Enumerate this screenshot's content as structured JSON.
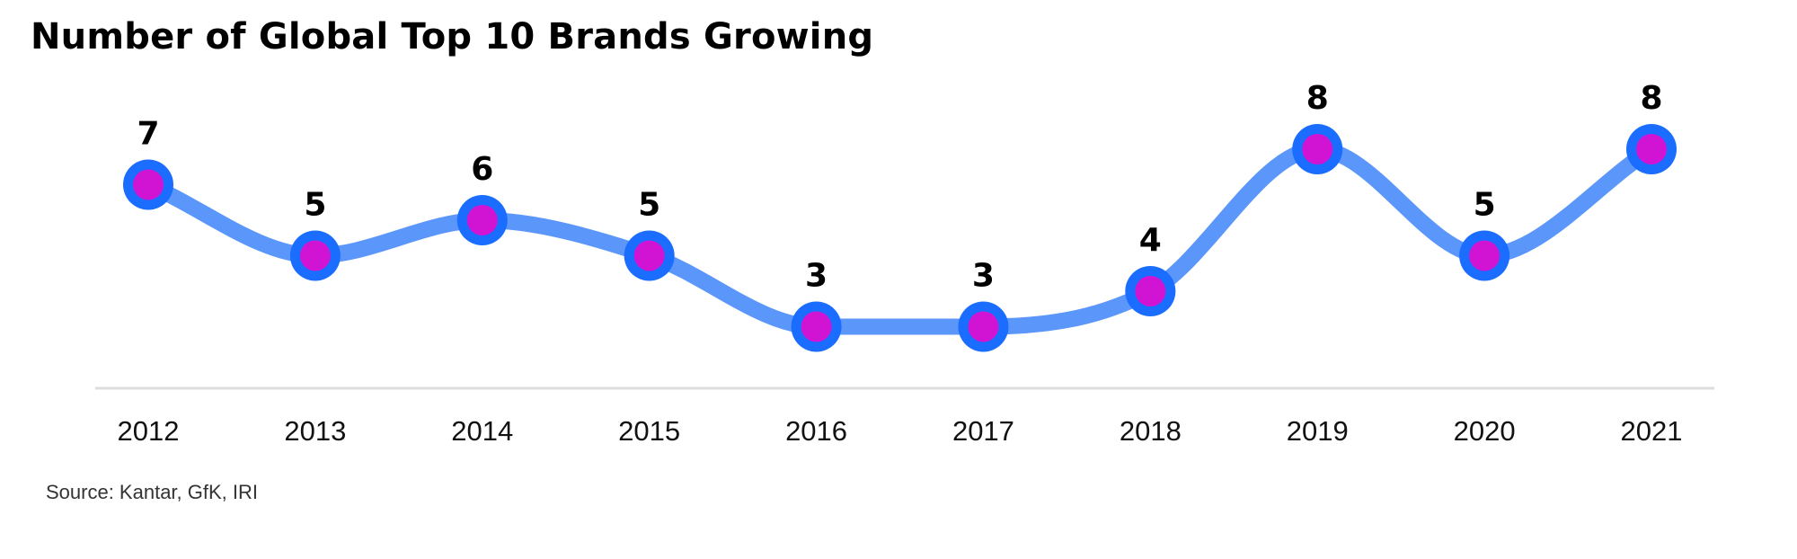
{
  "title": "Number of Global Top 10 Brands Growing",
  "source": "Source: Kantar, GfK, IRI",
  "colors": {
    "line": "#5b96fb",
    "marker_ring": "#1a6dff",
    "marker_fill": "#d113d4",
    "axis": "#dddddd"
  },
  "chart_data": {
    "type": "line",
    "title": "Number of Global Top 10 Brands Growing",
    "xlabel": "",
    "ylabel": "",
    "categories": [
      "2012",
      "2013",
      "2014",
      "2015",
      "2016",
      "2017",
      "2018",
      "2019",
      "2020",
      "2021"
    ],
    "series": [
      {
        "values": [
          7,
          5,
          6,
          5,
          3,
          3,
          4,
          8,
          5,
          8
        ]
      }
    ],
    "data_labels": true,
    "smooth": true,
    "markers": true,
    "grid": false,
    "legend": "none"
  }
}
